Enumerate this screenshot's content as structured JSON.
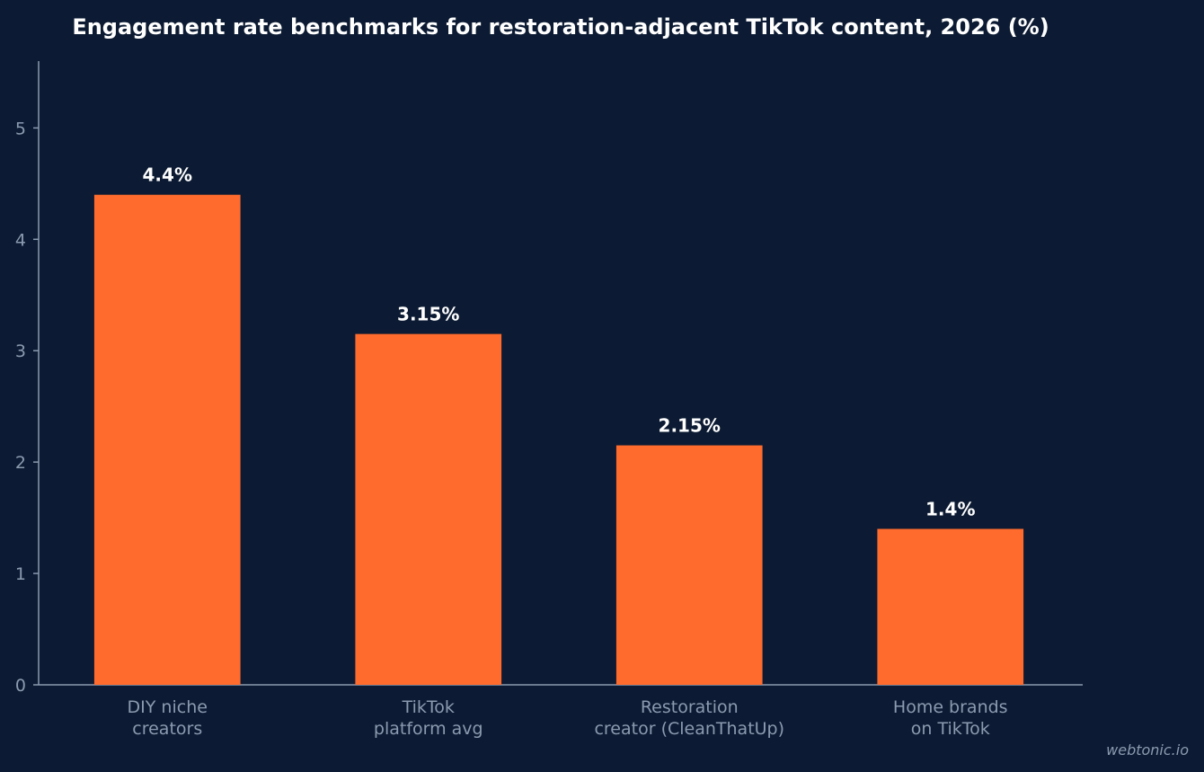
{
  "chart_data": {
    "type": "bar",
    "title": "Engagement rate benchmarks for restoration-adjacent TikTok content, 2026 (%)",
    "categories": [
      [
        "DIY niche",
        "creators"
      ],
      [
        "TikTok",
        "platform avg"
      ],
      [
        "Restoration",
        "creator (CleanThatUp)"
      ],
      [
        "Home brands",
        "on TikTok"
      ]
    ],
    "values": [
      4.4,
      3.15,
      2.15,
      1.4
    ],
    "data_labels": [
      "4.4%",
      "3.15%",
      "2.15%",
      "1.4%"
    ],
    "xlabel": "",
    "ylabel": "",
    "ylim": [
      0,
      5.6
    ],
    "yticks": [
      0,
      1,
      2,
      3,
      4,
      5
    ],
    "grid": false,
    "legend": "none",
    "bar_color": "#ff6b2d",
    "background_color": "#0c1b33"
  },
  "watermark": "webtonic.io"
}
